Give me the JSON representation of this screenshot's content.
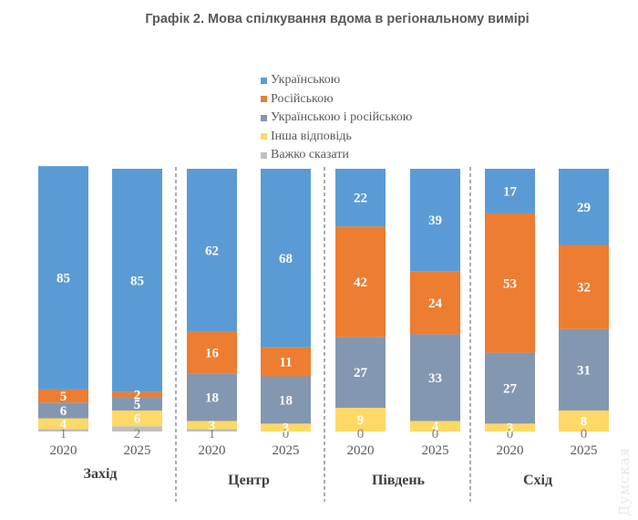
{
  "chart_data": {
    "type": "bar",
    "stacked": true,
    "title": "Графік 2. Мова спілкування вдома в регіональному вимірі",
    "xlabel": "",
    "ylabel": "",
    "ylim": [
      0,
      100
    ],
    "legend_position": "top-center",
    "grid": false,
    "groups": [
      "Захід",
      "Центр",
      "Південь",
      "Схід"
    ],
    "categories": [
      "2020",
      "2025",
      "2020",
      "2025",
      "2020",
      "2025",
      "2020",
      "2025"
    ],
    "series": [
      {
        "name": "Українською",
        "color": "#5b9bd5",
        "label_color": "#ffffff",
        "values": [
          85,
          85,
          62,
          68,
          22,
          39,
          17,
          29
        ]
      },
      {
        "name": "Російською",
        "color": "#ed7d31",
        "label_color": "#ffffff",
        "values": [
          5,
          2,
          16,
          11,
          42,
          24,
          53,
          32
        ]
      },
      {
        "name": "Українською і російською",
        "color": "#8497b0",
        "label_color": "#ffffff",
        "values": [
          6,
          5,
          18,
          18,
          27,
          33,
          27,
          31
        ]
      },
      {
        "name": "Інша відповідь",
        "color": "#ffd966",
        "label_color": "#ffffff",
        "values": [
          4,
          6,
          3,
          3,
          9,
          4,
          3,
          8
        ]
      },
      {
        "name": "Важко сказати",
        "color": "#bfbfbf",
        "label_color": "#7f7f7f",
        "values": [
          1,
          2,
          1,
          0,
          0,
          0,
          0,
          0
        ]
      }
    ]
  },
  "watermark": "Думская"
}
